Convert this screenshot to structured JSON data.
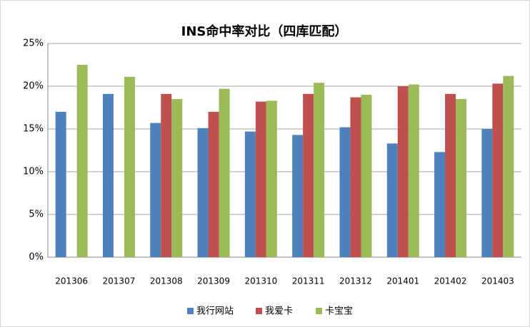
{
  "chart_data": {
    "type": "bar",
    "title": "INS命中率对比（四库匹配）",
    "categories": [
      "201306",
      "201307",
      "201308",
      "201309",
      "201310",
      "201311",
      "201312",
      "201401",
      "201402",
      "201403"
    ],
    "series": [
      {
        "name": "我行网站",
        "color": "#4f81bd",
        "values": [
          17.0,
          19.1,
          15.7,
          15.1,
          14.7,
          14.3,
          15.2,
          13.3,
          12.3,
          15.0
        ]
      },
      {
        "name": "我爱卡",
        "color": "#c0504d",
        "values": [
          null,
          null,
          19.1,
          17.0,
          18.2,
          19.1,
          18.7,
          20.0,
          19.1,
          20.3
        ]
      },
      {
        "name": "卡宝宝",
        "color": "#9bbb59",
        "values": [
          22.5,
          21.1,
          18.5,
          19.7,
          18.3,
          20.4,
          19.0,
          20.2,
          18.5,
          21.2
        ]
      }
    ],
    "ylim": [
      0,
      25
    ],
    "yticks": [
      {
        "value": 0,
        "label": "0%"
      },
      {
        "value": 5,
        "label": "5%"
      },
      {
        "value": 10,
        "label": "10%"
      },
      {
        "value": 15,
        "label": "15%"
      },
      {
        "value": 20,
        "label": "20%"
      },
      {
        "value": 25,
        "label": "25%"
      }
    ],
    "grid": true,
    "legend": "bottom"
  }
}
